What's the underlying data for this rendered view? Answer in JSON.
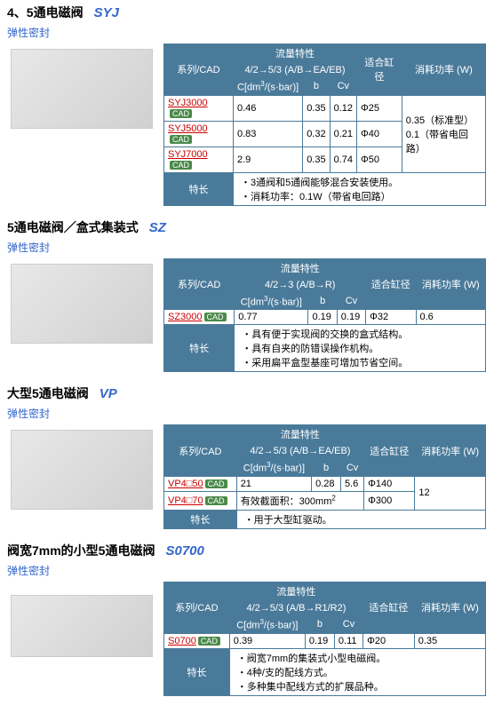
{
  "sections": [
    {
      "title": "4、5通电磁阀",
      "model": "SYJ",
      "subtitle": "弹性密封",
      "headers": {
        "series": "系列/CAD",
        "flow": "流量特性",
        "flow_sub": "4/2→5/3 (A/B→EA/EB)",
        "c": "C[dm³/(s·bar)]",
        "b": "b",
        "cv": "Cv",
        "cyl": "适合缸径",
        "power": "消耗功率 (W)",
        "feature": "特长"
      },
      "rows": [
        {
          "series": "SYJ3000",
          "c": "0.46",
          "b": "0.35",
          "cv": "0.12",
          "cyl": "Φ25"
        },
        {
          "series": "SYJ5000",
          "c": "0.83",
          "b": "0.32",
          "cv": "0.21",
          "cyl": "Φ40"
        },
        {
          "series": "SYJ7000",
          "c": "2.9",
          "b": "0.35",
          "cv": "0.74",
          "cyl": "Φ50"
        }
      ],
      "power": "0.35（标准型）\n0.1（带省电回路）",
      "features": [
        "3通阀和5通阀能够混合安装使用。",
        "消耗功率：0.1W（带省电回路）"
      ]
    },
    {
      "title": "5通电磁阀／盒式集装式",
      "model": "SZ",
      "subtitle": "弹性密封",
      "headers": {
        "series": "系列/CAD",
        "flow": "流量特性",
        "flow_sub": "4/2→3 (A/B→R)",
        "c": "C[dm³/(s·bar)]",
        "b": "b",
        "cv": "Cv",
        "cyl": "适合缸径",
        "power": "消耗功率 (W)",
        "feature": "特长"
      },
      "rows": [
        {
          "series": "SZ3000",
          "c": "0.77",
          "b": "0.19",
          "cv": "0.19",
          "cyl": "Φ32",
          "power": "0.6"
        }
      ],
      "features": [
        "具有便于实现阀的交换的盒式结构。",
        "具有自夹的防错误操作机构。",
        "采用扁平盒型基座可增加节省空间。"
      ]
    },
    {
      "title": "大型5通电磁阀",
      "model": "VP",
      "subtitle": "弹性密封",
      "headers": {
        "series": "系列/CAD",
        "flow": "流量特性",
        "flow_sub": "4/2→5/3 (A/B→EA/EB)",
        "c": "C[dm³/(s·bar)]",
        "b": "b",
        "cv": "Cv",
        "cyl": "适合缸径",
        "power": "消耗功率 (W)",
        "feature": "特长"
      },
      "rows": [
        {
          "series": "VP4□50",
          "c": "21",
          "b": "0.28",
          "cv": "5.6",
          "cyl": "Φ140"
        },
        {
          "series": "VP4□70",
          "c_span": "有效截面积：300mm²",
          "cyl": "Φ300"
        }
      ],
      "power": "12",
      "features": [
        "用于大型缸驱动。"
      ]
    },
    {
      "title": "阀宽7mm的小型5通电磁阀",
      "model": "S0700",
      "subtitle": "弹性密封",
      "headers": {
        "series": "系列/CAD",
        "flow": "流量特性",
        "flow_sub": "4/2→5/3 (A/B→R1/R2)",
        "c": "C[dm³/(s·bar)]",
        "b": "b",
        "cv": "Cv",
        "cyl": "适合缸径",
        "power": "消耗功率 (W)",
        "feature": "特长"
      },
      "rows": [
        {
          "series": "S0700",
          "c": "0.39",
          "b": "0.19",
          "cv": "0.11",
          "cyl": "Φ20",
          "power": "0.35"
        }
      ],
      "features": [
        "阀宽7mm的集装式小型电磁阀。",
        "4种/支的配线方式。",
        "多种集中配线方式的扩展品种。"
      ]
    }
  ],
  "cad_label": "CAD"
}
